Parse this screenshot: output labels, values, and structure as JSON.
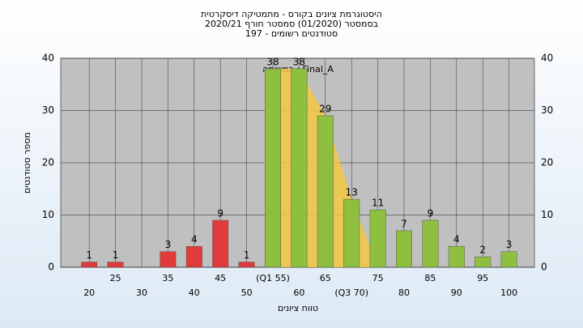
{
  "chart_data": {
    "type": "bar",
    "title": "היסטוגרמת ציונים בקורס - מתמטיקה דיסקרטית",
    "subtitle": "בסמסטר  (01/2020)  סמסטר חורף  2020/21",
    "subtitle2": "סטודנטים רשומים - 197",
    "annotation": "במשימה : Final_A",
    "x_label": "טווח ציונים",
    "y_label": "מספר סטודנטים",
    "categories": [
      "20",
      "25",
      "30",
      "35",
      "40",
      "45",
      "50",
      "(Q1 55)",
      "60",
      "65",
      "(Q3 70)",
      "75",
      "80",
      "85",
      "90",
      "95",
      "100"
    ],
    "values": [
      1,
      1,
      null,
      3,
      4,
      9,
      1,
      38,
      38,
      29,
      13,
      11,
      7,
      9,
      4,
      2,
      3
    ],
    "colors": [
      "#e03a3a",
      "#e03a3a",
      "#e03a3a",
      "#e03a3a",
      "#e03a3a",
      "#e03a3a",
      "#e03a3a",
      "#8fbf3f",
      "#8fbf3f",
      "#8fbf3f",
      "#8fbf3f",
      "#8fbf3f",
      "#8fbf3f",
      "#8fbf3f",
      "#8fbf3f",
      "#8fbf3f",
      "#8fbf3f"
    ],
    "quartile_color": "#f5c842",
    "ylim": [
      0,
      40
    ],
    "yticks": [
      0,
      10,
      20,
      30,
      40
    ],
    "grid": true
  }
}
